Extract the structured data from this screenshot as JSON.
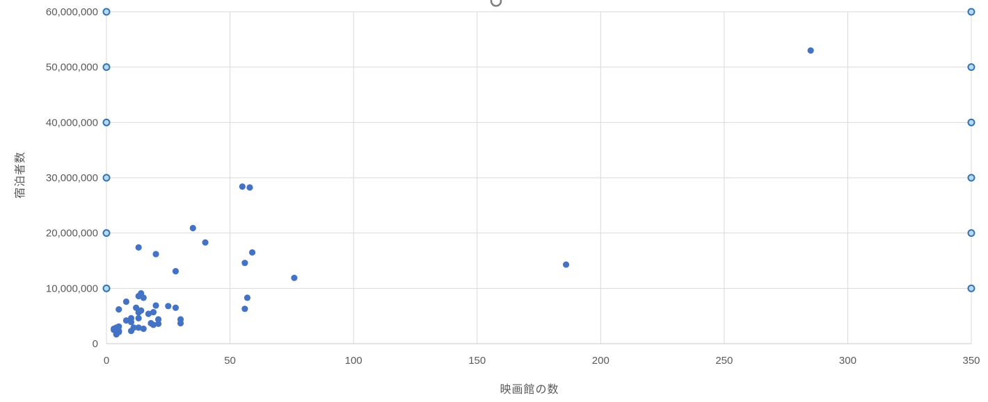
{
  "chart_data": {
    "type": "scatter",
    "title": "",
    "xlabel": "映画館の数",
    "ylabel": "宿泊者数",
    "xlim": [
      0,
      350
    ],
    "ylim": [
      0,
      60000000
    ],
    "x_ticks": [
      0,
      50,
      100,
      150,
      200,
      250,
      300,
      350
    ],
    "x_tick_labels": [
      "0",
      "50",
      "100",
      "150",
      "200",
      "250",
      "300",
      "350"
    ],
    "y_ticks": [
      0,
      10000000,
      20000000,
      30000000,
      40000000,
      50000000,
      60000000
    ],
    "y_tick_labels": [
      "0",
      "10,000,000",
      "20,000,000",
      "30,000,000",
      "40,000,000",
      "50,000,000",
      "60,000,000"
    ],
    "grid": true,
    "legend": "none",
    "series": [
      {
        "name": "scatter-series-1",
        "points": [
          [
            285,
            53000000
          ],
          [
            186,
            14300000
          ],
          [
            76,
            11900000
          ],
          [
            55,
            28400000
          ],
          [
            58,
            28250000
          ],
          [
            59,
            16500000
          ],
          [
            56,
            14600000
          ],
          [
            57,
            8300000
          ],
          [
            56,
            6300000
          ],
          [
            35,
            20900000
          ],
          [
            40,
            18300000
          ],
          [
            13,
            17400000
          ],
          [
            20,
            16200000
          ],
          [
            28,
            13100000
          ],
          [
            14,
            9100000
          ],
          [
            13,
            8600000
          ],
          [
            15,
            8300000
          ],
          [
            8,
            7600000
          ],
          [
            20,
            6900000
          ],
          [
            25,
            6800000
          ],
          [
            28,
            6500000
          ],
          [
            12,
            6500000
          ],
          [
            5,
            6200000
          ],
          [
            14,
            6000000
          ],
          [
            19,
            5700000
          ],
          [
            13,
            5650000
          ],
          [
            17,
            5400000
          ],
          [
            10,
            4600000
          ],
          [
            13,
            4600000
          ],
          [
            21,
            4400000
          ],
          [
            30,
            4400000
          ],
          [
            8,
            4200000
          ],
          [
            10,
            3900000
          ],
          [
            30,
            3700000
          ],
          [
            18,
            3700000
          ],
          [
            21,
            3600000
          ],
          [
            19,
            3400000
          ],
          [
            5,
            3100000
          ],
          [
            11,
            2900000
          ],
          [
            4,
            2900000
          ],
          [
            13,
            2900000
          ],
          [
            3,
            2700000
          ],
          [
            15,
            2700000
          ],
          [
            3,
            2500000
          ],
          [
            5,
            2300000
          ],
          [
            10,
            2300000
          ],
          [
            5,
            2100000
          ],
          [
            4,
            1700000
          ]
        ]
      }
    ]
  },
  "ui": {
    "state": "horizontal-gridlines-selected",
    "gridline_handles_at_y_ticks": [
      10000000,
      20000000,
      30000000,
      40000000,
      50000000,
      60000000
    ],
    "rotate_handle_visible": true
  },
  "colors": {
    "marker": "#4472C4",
    "gridline": "#D9D9D9",
    "axis_line": "#C8C8C8",
    "tick_label": "#595959",
    "axis_title": "#595959",
    "handle_fill": "#BDD7EE",
    "handle_stroke": "#2E75B6",
    "rotate_handle": "#7F7F7F",
    "background": "#FFFFFF"
  }
}
